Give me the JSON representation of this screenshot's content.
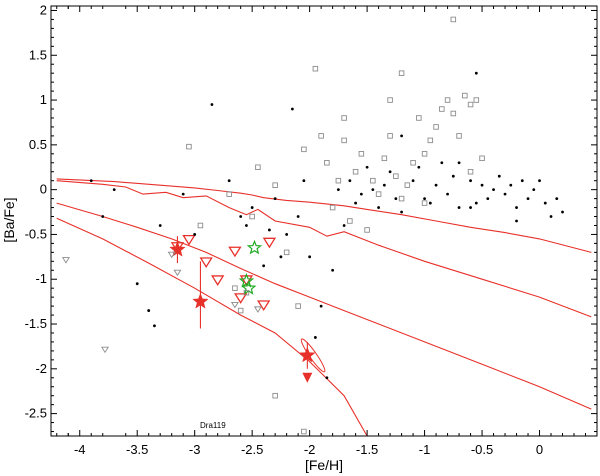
{
  "chart_data": {
    "type": "scatter",
    "xlabel": "[Fe/H]",
    "ylabel": "[Ba/Fe]",
    "xlim": [
      -4.25,
      0.5
    ],
    "ylim": [
      -2.75,
      2.05
    ],
    "x_ticks": [
      -4,
      -3.5,
      -3,
      -2.5,
      -2,
      -1.5,
      -1,
      -0.5,
      0
    ],
    "y_ticks": [
      -2.5,
      -2,
      -1.5,
      -1,
      -0.5,
      0,
      0.5,
      1,
      1.5,
      2
    ],
    "x_tick_labels": [
      "-4",
      "-3.5",
      "-3",
      "-2.5",
      "-2",
      "-1.5",
      "-1",
      "-0.5",
      "0"
    ],
    "y_tick_labels": [
      "-2.5",
      "-2",
      "-1.5",
      "-1",
      "-0.5",
      "0",
      "0.5",
      "1",
      "1.5",
      "2"
    ],
    "grid": false,
    "annotations": [
      {
        "text": "Dra119",
        "x": -2.75,
        "y": -2.63
      }
    ],
    "colors": {
      "model": "#e8302a",
      "highlight": "#e8302a",
      "green": "#22aa22",
      "gray": "#8c8c8c"
    },
    "series": [
      {
        "marker": "line-red",
        "curves": [
          {
            "x": [
              -4.2,
              -3.7,
              -3.3,
              -3.0,
              -2.8,
              -2.6,
              -2.5,
              -2.4,
              -2.2,
              -2.0,
              -1.7,
              -1.5,
              -1.2,
              -0.9,
              -0.6,
              -0.3,
              0.0,
              0.45
            ],
            "y": [
              0.12,
              0.09,
              0.05,
              0.02,
              -0.01,
              -0.04,
              -0.06,
              -0.09,
              -0.12,
              -0.14,
              -0.18,
              -0.22,
              -0.28,
              -0.35,
              -0.42,
              -0.48,
              -0.55,
              -0.7
            ]
          },
          {
            "x": [
              -4.2,
              -3.8,
              -3.6,
              -3.45,
              -3.25,
              -3.1,
              -2.9,
              -2.7,
              -2.55,
              -2.45,
              -2.3,
              -2.0,
              -1.85,
              -1.7,
              -1.4,
              -1.0,
              -0.5,
              0.0,
              0.45
            ],
            "y": [
              0.1,
              0.06,
              0.03,
              -0.05,
              -0.03,
              -0.09,
              -0.07,
              -0.2,
              -0.28,
              -0.22,
              -0.35,
              -0.42,
              -0.52,
              -0.47,
              -0.62,
              -0.8,
              -1.0,
              -1.2,
              -1.42
            ]
          },
          {
            "x": [
              -4.2,
              -3.8,
              -3.5,
              -3.2,
              -2.9,
              -2.6,
              -2.3,
              -2.0,
              -1.7,
              -1.4,
              -1.0,
              -0.5,
              0.0,
              0.45
            ],
            "y": [
              -0.15,
              -0.3,
              -0.42,
              -0.55,
              -0.7,
              -0.88,
              -1.05,
              -1.2,
              -1.35,
              -1.5,
              -1.7,
              -1.95,
              -2.2,
              -2.45
            ]
          },
          {
            "x": [
              -4.2,
              -3.8,
              -3.4,
              -3.0,
              -2.6,
              -2.3,
              -2.0,
              -1.7,
              -1.5
            ],
            "y": [
              -0.32,
              -0.55,
              -0.82,
              -1.1,
              -1.4,
              -1.6,
              -1.92,
              -2.3,
              -2.75
            ]
          }
        ]
      },
      {
        "marker": "filled-red-star",
        "points": [
          [
            -3.15,
            -0.67,
            0.15,
            0.15
          ],
          [
            -2.95,
            -1.25,
            0.45,
            0.3
          ],
          [
            -2.02,
            -1.85,
            0.15,
            0.15
          ]
        ]
      },
      {
        "marker": "red-open-triangle",
        "points": [
          [
            -3.15,
            -0.63
          ],
          [
            -3.05,
            -0.55
          ],
          [
            -2.9,
            -0.8
          ],
          [
            -2.65,
            -0.68
          ],
          [
            -2.55,
            -1.0
          ],
          [
            -2.6,
            -1.2
          ],
          [
            -2.35,
            -0.58
          ],
          [
            -2.4,
            -1.28
          ],
          [
            -2.8,
            -1.0
          ]
        ]
      },
      {
        "marker": "red-arrow",
        "points": [
          [
            -2.02,
            -2.1
          ]
        ]
      },
      {
        "marker": "red-ellipse",
        "points": [
          [
            -1.97,
            -1.85
          ]
        ]
      },
      {
        "marker": "green-open-star",
        "points": [
          [
            -2.48,
            -0.65
          ],
          [
            -2.55,
            -1.02
          ],
          [
            -2.53,
            -1.1
          ]
        ]
      },
      {
        "marker": "black-dot",
        "points": [
          [
            -3.9,
            0.1
          ],
          [
            -3.8,
            -0.3
          ],
          [
            -3.3,
            -0.4
          ],
          [
            -3.5,
            -1.05
          ],
          [
            -3.4,
            -1.35
          ],
          [
            -3.35,
            -1.52
          ],
          [
            -3.0,
            -0.5
          ],
          [
            -2.85,
            0.95
          ],
          [
            -2.7,
            0.1
          ],
          [
            -2.6,
            -0.3
          ],
          [
            -2.5,
            -0.2
          ],
          [
            -2.4,
            -0.85
          ],
          [
            -2.35,
            -0.45
          ],
          [
            -2.2,
            -0.5
          ],
          [
            -2.1,
            -0.3
          ],
          [
            -2.0,
            -0.75
          ],
          [
            -1.95,
            -1.65
          ],
          [
            -1.85,
            -2.1
          ],
          [
            -1.9,
            -1.3
          ],
          [
            -1.8,
            -0.9
          ],
          [
            -1.7,
            -0.4
          ],
          [
            -1.6,
            -0.15
          ],
          [
            -1.65,
            0.1
          ],
          [
            -1.55,
            -0.05
          ],
          [
            -1.45,
            0.0
          ],
          [
            -1.4,
            -0.2
          ],
          [
            -1.35,
            0.05
          ],
          [
            -1.3,
            0.2
          ],
          [
            -1.2,
            -0.25
          ],
          [
            -1.1,
            0.1
          ],
          [
            -1.0,
            -0.1
          ],
          [
            -0.9,
            0.05
          ],
          [
            -0.85,
            0.3
          ],
          [
            -0.8,
            -0.05
          ],
          [
            -0.75,
            0.15
          ],
          [
            -0.7,
            -0.2
          ],
          [
            -0.6,
            0.1
          ],
          [
            -0.55,
            -0.15
          ],
          [
            -0.5,
            0.05
          ],
          [
            -0.45,
            -0.1
          ],
          [
            -0.4,
            0.0
          ],
          [
            -0.35,
            0.15
          ],
          [
            -0.3,
            -0.05
          ],
          [
            -0.25,
            0.05
          ],
          [
            -0.2,
            -0.2
          ],
          [
            -0.15,
            0.1
          ],
          [
            -0.1,
            -0.1
          ],
          [
            -0.05,
            0.0
          ],
          [
            0.0,
            0.1
          ],
          [
            0.05,
            -0.15
          ],
          [
            0.1,
            -0.3
          ],
          [
            0.15,
            -0.1
          ],
          [
            0.2,
            -0.25
          ],
          [
            -0.55,
            1.3
          ],
          [
            -2.15,
            0.9
          ],
          [
            -1.2,
            0.6
          ],
          [
            -0.7,
            0.3
          ],
          [
            -0.2,
            -0.35
          ],
          [
            -0.6,
            -0.2
          ],
          [
            -0.95,
            -0.15
          ],
          [
            -1.05,
            0.25
          ],
          [
            -1.25,
            -0.1
          ],
          [
            -1.5,
            0.25
          ],
          [
            -1.75,
            0.0
          ],
          [
            -2.05,
            0.1
          ],
          [
            -2.3,
            -0.1
          ],
          [
            -2.55,
            -0.4
          ],
          [
            -2.25,
            -0.75
          ],
          [
            -3.1,
            -0.05
          ],
          [
            -3.7,
            0.0
          ]
        ]
      },
      {
        "marker": "gray-open-square",
        "points": [
          [
            -3.05,
            0.48
          ],
          [
            -2.95,
            -0.4
          ],
          [
            -2.7,
            -0.05
          ],
          [
            -2.45,
            0.25
          ],
          [
            -2.3,
            0.05
          ],
          [
            -2.2,
            -0.7
          ],
          [
            -2.1,
            -1.3
          ],
          [
            -2.05,
            0.45
          ],
          [
            -1.95,
            1.35
          ],
          [
            -1.9,
            0.6
          ],
          [
            -1.85,
            0.3
          ],
          [
            -1.8,
            -0.2
          ],
          [
            -1.75,
            0.1
          ],
          [
            -1.7,
            0.55
          ],
          [
            -1.6,
            0.2
          ],
          [
            -1.55,
            0.4
          ],
          [
            -1.45,
            0.1
          ],
          [
            -1.4,
            -0.05
          ],
          [
            -1.35,
            0.35
          ],
          [
            -1.3,
            0.6
          ],
          [
            -1.25,
            0.15
          ],
          [
            -1.2,
            -0.1
          ],
          [
            -1.15,
            0.05
          ],
          [
            -1.1,
            0.3
          ],
          [
            -1.05,
            0.8
          ],
          [
            -1.0,
            0.4
          ],
          [
            -0.95,
            0.55
          ],
          [
            -0.9,
            0.7
          ],
          [
            -0.85,
            0.9
          ],
          [
            -0.8,
            1.0
          ],
          [
            -0.75,
            0.85
          ],
          [
            -0.7,
            0.6
          ],
          [
            -0.65,
            1.05
          ],
          [
            -0.6,
            0.95
          ],
          [
            -0.55,
            1.0
          ],
          [
            -0.5,
            0.35
          ],
          [
            -1.3,
            1.0
          ],
          [
            -1.2,
            1.3
          ],
          [
            -0.75,
            1.9
          ],
          [
            -0.6,
            0.2
          ],
          [
            -1.65,
            -0.35
          ],
          [
            -1.5,
            -0.45
          ],
          [
            -2.05,
            -2.7
          ],
          [
            -2.5,
            -0.3
          ],
          [
            -2.65,
            -1.1
          ],
          [
            -2.55,
            -1.15
          ],
          [
            -2.6,
            -1.35
          ],
          [
            -2.3,
            -2.3
          ],
          [
            -1.0,
            -0.15
          ],
          [
            -1.7,
            0.8
          ]
        ]
      },
      {
        "marker": "gray-open-triangle",
        "points": [
          [
            -4.12,
            -0.78
          ],
          [
            -3.78,
            -1.78
          ],
          [
            -3.15,
            -0.92
          ],
          [
            -2.45,
            -1.33
          ],
          [
            -3.2,
            -0.72
          ],
          [
            -2.65,
            -1.28
          ]
        ]
      }
    ]
  }
}
